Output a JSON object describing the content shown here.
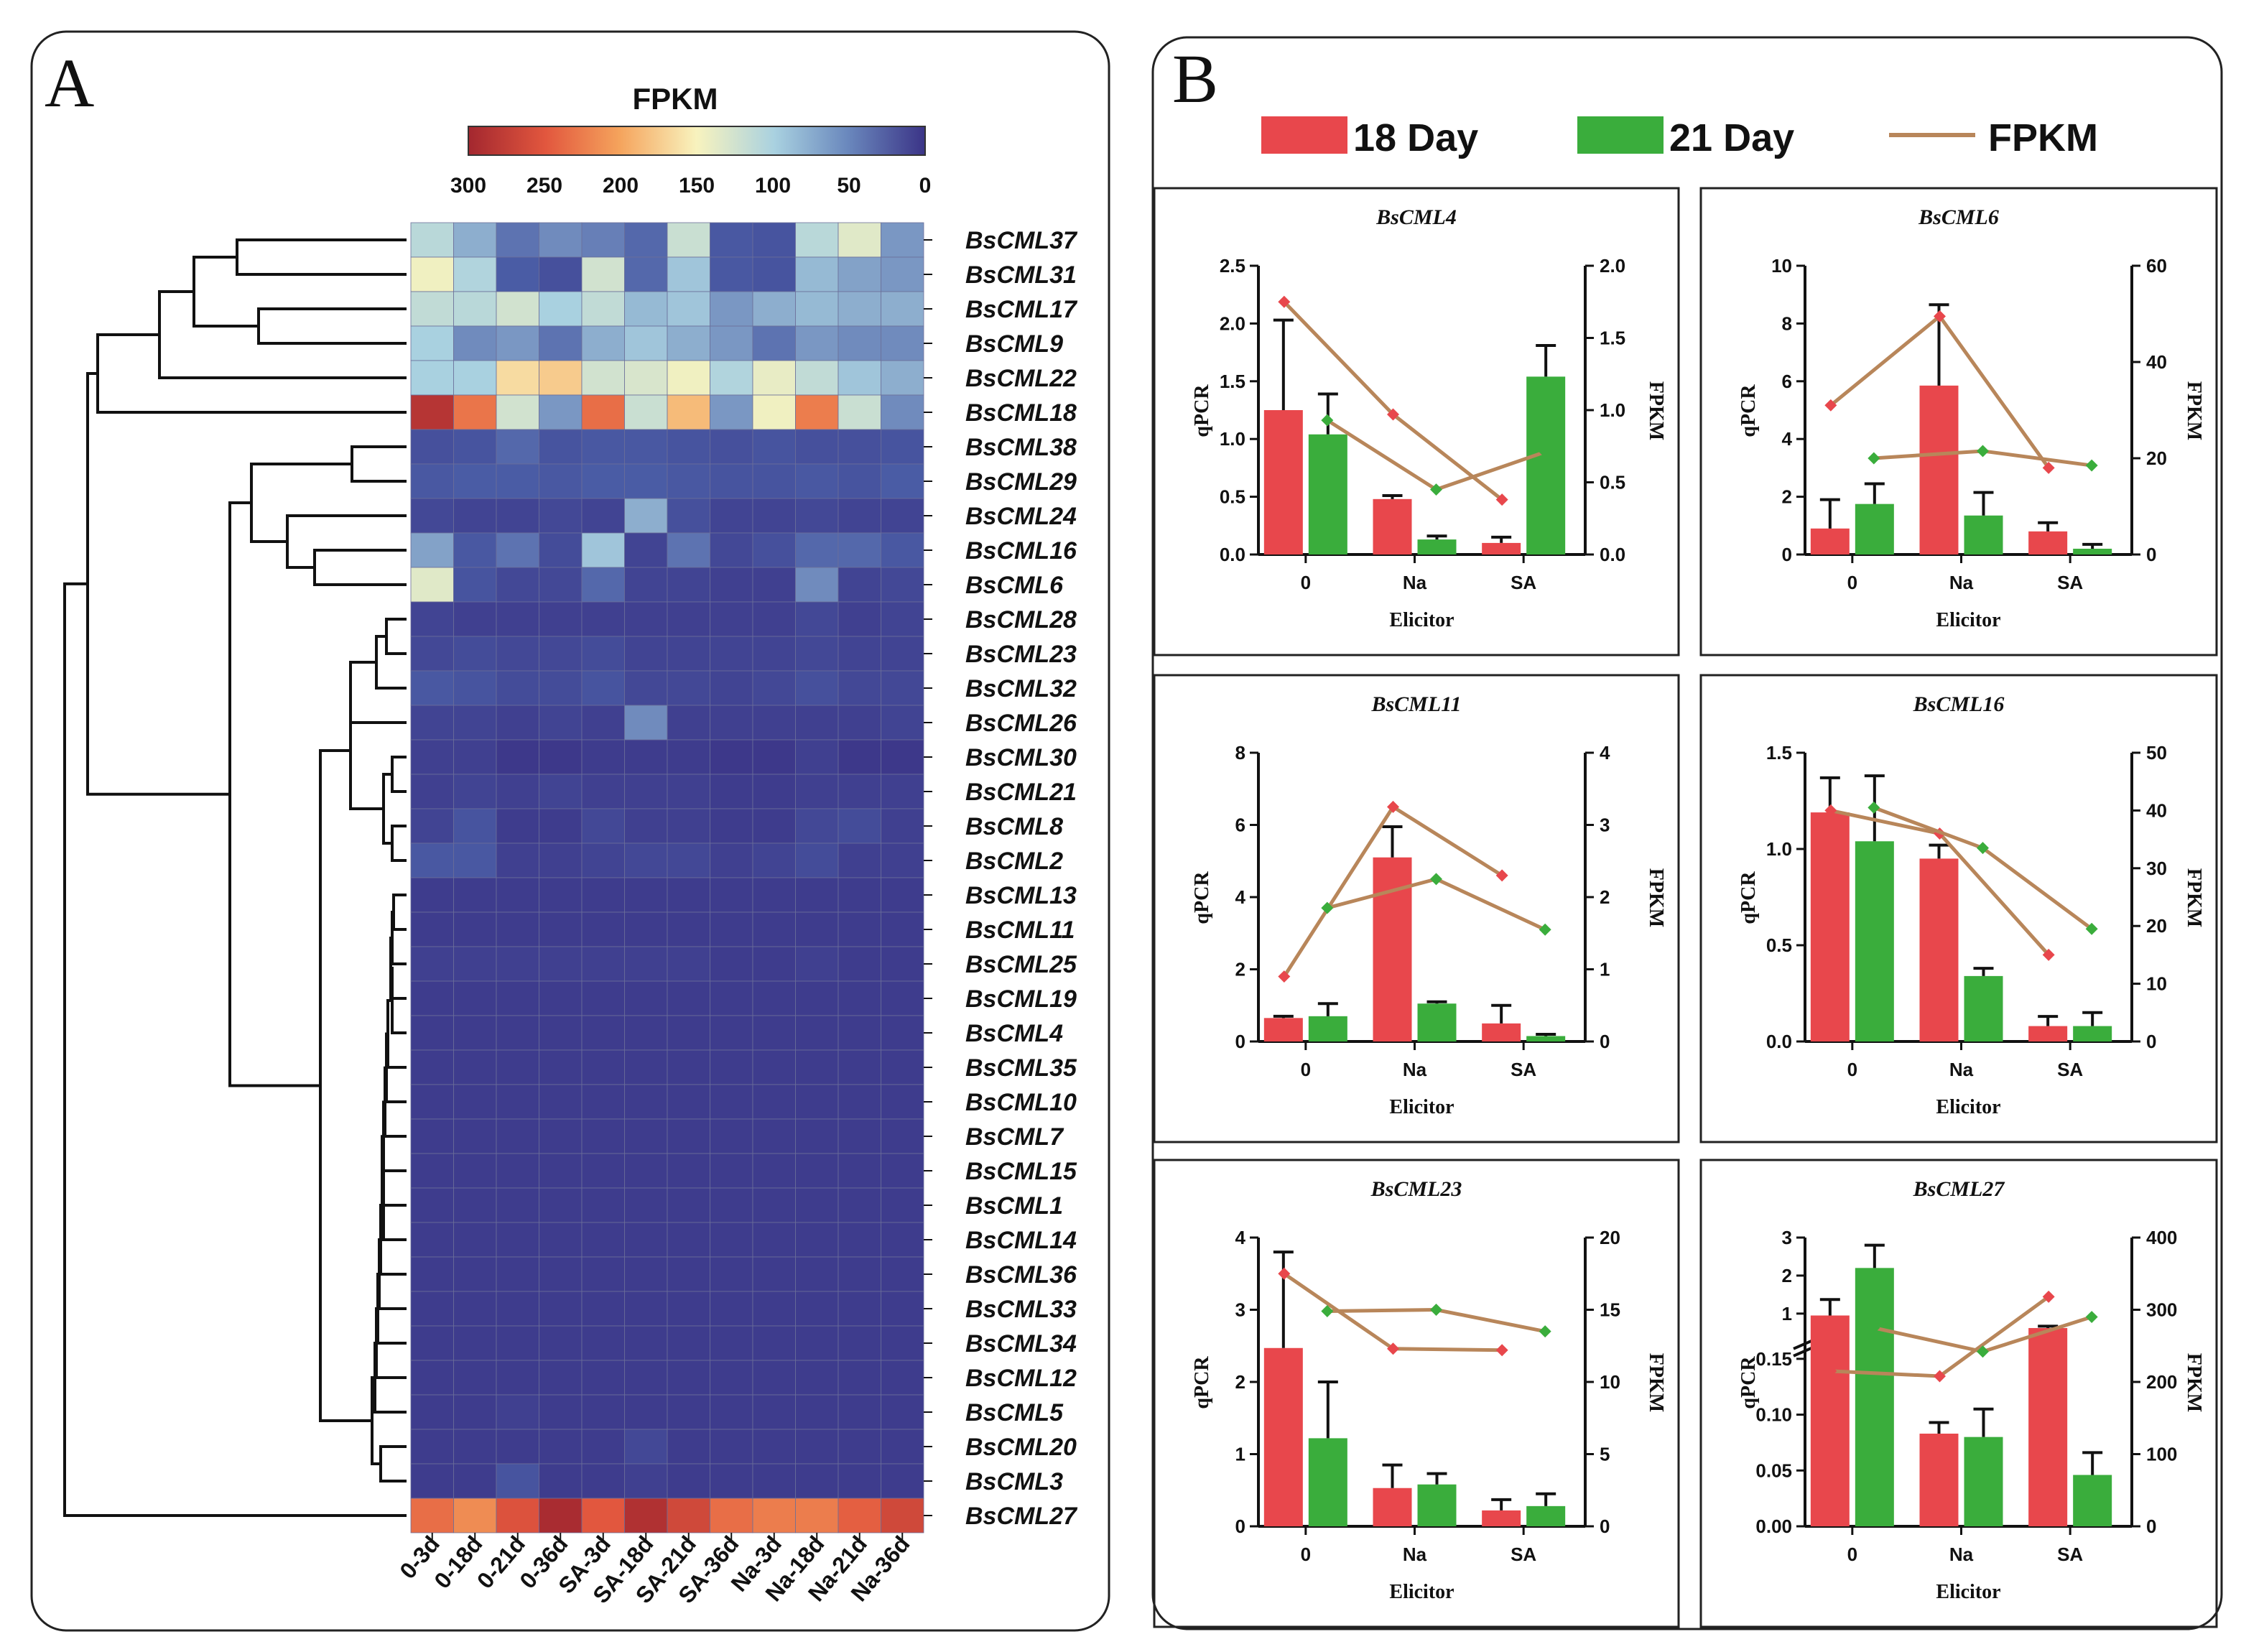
{
  "panels": {
    "a": "A",
    "b": "B"
  },
  "colors": {
    "bar_18": "#e8474c",
    "bar_21": "#3aad3c",
    "fpkm_line": "#b8865a",
    "marker_18": "#e8474c",
    "marker_21": "#3aad3c"
  },
  "legend": {
    "day18": "18 Day",
    "day21": "21 Day",
    "fpkm": "FPKM"
  },
  "chart_data": [
    {
      "type": "heatmap",
      "title": "FPKM",
      "colorbar": {
        "ticks": [
          "300",
          "250",
          "200",
          "150",
          "100",
          "50",
          "0"
        ],
        "range": [
          0,
          300
        ]
      },
      "columns": [
        "0-3d",
        "0-18d",
        "0-21d",
        "0-36d",
        "SA-3d",
        "SA-18d",
        "SA-21d",
        "SA-36d",
        "Na-3d",
        "Na-18d",
        "Na-21d",
        "Na-36d"
      ],
      "rows": [
        "BsCML37",
        "BsCML31",
        "BsCML17",
        "BsCML9",
        "BsCML22",
        "BsCML18",
        "BsCML38",
        "BsCML29",
        "BsCML24",
        "BsCML16",
        "BsCML6",
        "BsCML28",
        "BsCML23",
        "BsCML32",
        "BsCML26",
        "BsCML30",
        "BsCML21",
        "BsCML8",
        "BsCML2",
        "BsCML13",
        "BsCML11",
        "BsCML25",
        "BsCML19",
        "BsCML4",
        "BsCML35",
        "BsCML10",
        "BsCML7",
        "BsCML15",
        "BsCML1",
        "BsCML14",
        "BsCML36",
        "BsCML33",
        "BsCML34",
        "BsCML12",
        "BsCML5",
        "BsCML20",
        "BsCML3",
        "BsCML27"
      ],
      "values": [
        [
          110,
          85,
          60,
          70,
          65,
          55,
          120,
          45,
          40,
          110,
          135,
          75
        ],
        [
          145,
          105,
          50,
          35,
          125,
          55,
          95,
          45,
          40,
          90,
          80,
          75
        ],
        [
          115,
          110,
          125,
          100,
          115,
          90,
          95,
          75,
          85,
          90,
          85,
          85
        ],
        [
          100,
          70,
          75,
          60,
          85,
          95,
          85,
          75,
          60,
          75,
          70,
          70
        ],
        [
          100,
          100,
          165,
          175,
          125,
          130,
          145,
          105,
          140,
          115,
          95,
          85
        ],
        [
          285,
          230,
          125,
          75,
          235,
          120,
          185,
          75,
          145,
          225,
          120,
          70
        ],
        [
          35,
          40,
          55,
          40,
          45,
          45,
          40,
          35,
          40,
          35,
          35,
          40
        ],
        [
          45,
          50,
          50,
          45,
          50,
          50,
          45,
          40,
          40,
          45,
          40,
          50
        ],
        [
          25,
          20,
          20,
          25,
          20,
          85,
          35,
          20,
          20,
          25,
          20,
          20
        ],
        [
          80,
          45,
          60,
          30,
          95,
          20,
          60,
          25,
          35,
          55,
          55,
          45
        ],
        [
          135,
          40,
          25,
          25,
          55,
          20,
          20,
          15,
          15,
          70,
          20,
          25
        ],
        [
          20,
          15,
          15,
          15,
          15,
          15,
          15,
          15,
          15,
          25,
          15,
          20
        ],
        [
          25,
          30,
          25,
          25,
          30,
          20,
          20,
          20,
          20,
          25,
          20,
          20
        ],
        [
          45,
          40,
          30,
          30,
          40,
          25,
          25,
          20,
          25,
          35,
          25,
          25
        ],
        [
          20,
          20,
          15,
          20,
          15,
          70,
          15,
          15,
          15,
          15,
          15,
          20
        ],
        [
          15,
          15,
          5,
          5,
          10,
          10,
          10,
          5,
          5,
          15,
          5,
          5
        ],
        [
          15,
          20,
          15,
          20,
          15,
          15,
          15,
          10,
          10,
          15,
          15,
          15
        ],
        [
          20,
          40,
          10,
          10,
          25,
          15,
          15,
          10,
          10,
          25,
          30,
          15
        ],
        [
          45,
          45,
          15,
          15,
          20,
          25,
          25,
          15,
          20,
          30,
          15,
          15
        ],
        [
          10,
          10,
          10,
          10,
          10,
          10,
          10,
          10,
          10,
          10,
          10,
          10
        ],
        [
          10,
          10,
          10,
          10,
          10,
          10,
          10,
          10,
          10,
          10,
          10,
          10
        ],
        [
          15,
          15,
          15,
          15,
          15,
          15,
          15,
          10,
          10,
          15,
          10,
          10
        ],
        [
          10,
          10,
          10,
          10,
          10,
          10,
          10,
          10,
          10,
          10,
          10,
          10
        ],
        [
          10,
          10,
          10,
          10,
          10,
          10,
          10,
          10,
          10,
          10,
          10,
          10
        ],
        [
          10,
          10,
          10,
          10,
          10,
          10,
          10,
          10,
          10,
          10,
          10,
          10
        ],
        [
          10,
          10,
          10,
          10,
          10,
          10,
          10,
          10,
          10,
          10,
          10,
          10
        ],
        [
          10,
          10,
          10,
          10,
          10,
          10,
          10,
          10,
          10,
          10,
          10,
          10
        ],
        [
          10,
          10,
          10,
          10,
          10,
          10,
          10,
          10,
          10,
          10,
          10,
          10
        ],
        [
          10,
          10,
          10,
          10,
          10,
          10,
          10,
          10,
          10,
          10,
          10,
          10
        ],
        [
          10,
          10,
          10,
          10,
          10,
          10,
          10,
          10,
          10,
          10,
          10,
          10
        ],
        [
          10,
          10,
          10,
          10,
          10,
          10,
          10,
          10,
          10,
          10,
          10,
          10
        ],
        [
          10,
          10,
          10,
          10,
          10,
          10,
          10,
          10,
          10,
          10,
          10,
          10
        ],
        [
          10,
          10,
          10,
          10,
          10,
          10,
          10,
          10,
          10,
          10,
          10,
          10
        ],
        [
          10,
          10,
          10,
          10,
          10,
          10,
          10,
          10,
          10,
          10,
          10,
          10
        ],
        [
          10,
          10,
          15,
          10,
          10,
          10,
          10,
          10,
          10,
          10,
          10,
          10
        ],
        [
          10,
          10,
          10,
          10,
          10,
          25,
          10,
          10,
          10,
          10,
          10,
          10
        ],
        [
          10,
          10,
          40,
          10,
          10,
          15,
          10,
          10,
          10,
          10,
          10,
          10
        ],
        [
          235,
          215,
          255,
          295,
          250,
          290,
          265,
          235,
          225,
          225,
          245,
          265
        ]
      ]
    },
    {
      "type": "bar",
      "title": "BsCML4",
      "xlabel": "Elicitor",
      "ylabel": "qPCR",
      "y2label": "FPKM",
      "categories": [
        "0",
        "Na",
        "SA"
      ],
      "ylim": [
        0,
        2.5
      ],
      "yticks": [
        "0.0",
        "0.5",
        "1.0",
        "1.5",
        "2.0",
        "2.5"
      ],
      "y2lim": [
        0,
        2.0
      ],
      "y2ticks": [
        "0.0",
        "0.5",
        "1.0",
        "1.5",
        "2.0"
      ],
      "series": [
        {
          "name": "18 Day",
          "values": [
            1.25,
            0.48,
            0.1
          ],
          "errors": [
            0.78,
            0.03,
            0.05
          ]
        },
        {
          "name": "21 Day",
          "values": [
            1.04,
            0.13,
            1.54
          ],
          "errors": [
            0.35,
            0.03,
            0.27
          ]
        }
      ],
      "fpkm": [
        {
          "name": "18 Day",
          "values": [
            1.75,
            0.97,
            0.38
          ]
        },
        {
          "name": "21 Day",
          "values": [
            0.93,
            0.45,
            0.71
          ]
        }
      ]
    },
    {
      "type": "bar",
      "title": "BsCML6",
      "xlabel": "Elicitor",
      "ylabel": "qPCR",
      "y2label": "FPKM",
      "categories": [
        "0",
        "Na",
        "SA"
      ],
      "ylim": [
        0,
        10
      ],
      "yticks": [
        "0",
        "2",
        "4",
        "6",
        "8",
        "10"
      ],
      "y2lim": [
        0,
        60
      ],
      "y2ticks": [
        "0",
        "20",
        "40",
        "60"
      ],
      "series": [
        {
          "name": "18 Day",
          "values": [
            0.9,
            5.85,
            0.8
          ],
          "errors": [
            1.0,
            2.8,
            0.3
          ]
        },
        {
          "name": "21 Day",
          "values": [
            1.75,
            1.35,
            0.2
          ],
          "errors": [
            0.7,
            0.8,
            0.15
          ]
        }
      ],
      "fpkm": [
        {
          "name": "18 Day",
          "values": [
            31,
            49.5,
            18
          ]
        },
        {
          "name": "21 Day",
          "values": [
            20,
            21.5,
            18.5
          ]
        }
      ]
    },
    {
      "type": "bar",
      "title": "BsCML11",
      "xlabel": "Elicitor",
      "ylabel": "qPCR",
      "y2label": "FPKM",
      "categories": [
        "0",
        "Na",
        "SA"
      ],
      "ylim": [
        0,
        8
      ],
      "yticks": [
        "0",
        "2",
        "4",
        "6",
        "8"
      ],
      "y2lim": [
        0,
        4
      ],
      "y2ticks": [
        "0",
        "1",
        "2",
        "3",
        "4"
      ],
      "series": [
        {
          "name": "18 Day",
          "values": [
            0.65,
            5.1,
            0.5
          ],
          "errors": [
            0.05,
            0.85,
            0.5
          ]
        },
        {
          "name": "21 Day",
          "values": [
            0.7,
            1.05,
            0.15
          ],
          "errors": [
            0.35,
            0.05,
            0.05
          ]
        }
      ],
      "fpkm": [
        {
          "name": "18 Day",
          "values": [
            0.9,
            3.25,
            2.3
          ]
        },
        {
          "name": "21 Day",
          "values": [
            1.85,
            2.25,
            1.55
          ]
        }
      ]
    },
    {
      "type": "bar",
      "title": "BsCML16",
      "xlabel": "Elicitor",
      "ylabel": "qPCR",
      "y2label": "FPKM",
      "categories": [
        "0",
        "Na",
        "SA"
      ],
      "ylim": [
        0,
        1.5
      ],
      "yticks": [
        "0.0",
        "0.5",
        "1.0",
        "1.5"
      ],
      "y2lim": [
        0,
        50
      ],
      "y2ticks": [
        "0",
        "10",
        "20",
        "30",
        "40",
        "50"
      ],
      "series": [
        {
          "name": "18 Day",
          "values": [
            1.19,
            0.95,
            0.08
          ],
          "errors": [
            0.18,
            0.07,
            0.05
          ]
        },
        {
          "name": "21 Day",
          "values": [
            1.04,
            0.34,
            0.08
          ],
          "errors": [
            0.34,
            0.04,
            0.07
          ]
        }
      ],
      "fpkm": [
        {
          "name": "18 Day",
          "values": [
            40,
            36,
            15
          ]
        },
        {
          "name": "21 Day",
          "values": [
            40.5,
            33.5,
            19.5
          ]
        }
      ]
    },
    {
      "type": "bar",
      "title": "BsCML23",
      "xlabel": "Elicitor",
      "ylabel": "qPCR",
      "y2label": "FPKM",
      "categories": [
        "0",
        "Na",
        "SA"
      ],
      "ylim": [
        0,
        4
      ],
      "yticks": [
        "0",
        "1",
        "2",
        "3",
        "4"
      ],
      "y2lim": [
        0,
        20
      ],
      "y2ticks": [
        "0",
        "5",
        "10",
        "15",
        "20"
      ],
      "series": [
        {
          "name": "18 Day",
          "values": [
            2.47,
            0.53,
            0.22
          ],
          "errors": [
            1.33,
            0.32,
            0.15
          ]
        },
        {
          "name": "21 Day",
          "values": [
            1.22,
            0.58,
            0.28
          ],
          "errors": [
            0.78,
            0.15,
            0.17
          ]
        }
      ],
      "fpkm": [
        {
          "name": "18 Day",
          "values": [
            17.5,
            12.3,
            12.2
          ]
        },
        {
          "name": "21 Day",
          "values": [
            14.9,
            15.0,
            13.5
          ]
        }
      ]
    },
    {
      "type": "bar",
      "title": "BsCML27",
      "xlabel": "Elicitor",
      "ylabel": "qPCR",
      "y2label": "FPKM",
      "categories": [
        "0",
        "Na",
        "SA"
      ],
      "axis_break": true,
      "ylim": [
        0,
        3
      ],
      "yticks": [
        "0.00",
        "0.05",
        "0.10",
        "0.15",
        "1",
        "2",
        "3"
      ],
      "y2lim": [
        0,
        400
      ],
      "y2ticks": [
        "0",
        "100",
        "200",
        "300",
        "400"
      ],
      "series": [
        {
          "name": "18 Day",
          "values": [
            0.95,
            0.083,
            0.62
          ],
          "errors": [
            0.42,
            0.01,
            0.05
          ]
        },
        {
          "name": "21 Day",
          "values": [
            2.2,
            0.08,
            0.046
          ],
          "errors": [
            0.6,
            0.025,
            0.02
          ]
        }
      ],
      "fpkm": [
        {
          "name": "18 Day",
          "values": [
            215,
            208,
            318
          ]
        },
        {
          "name": "21 Day",
          "values": [
            275,
            242,
            290
          ]
        }
      ]
    }
  ]
}
